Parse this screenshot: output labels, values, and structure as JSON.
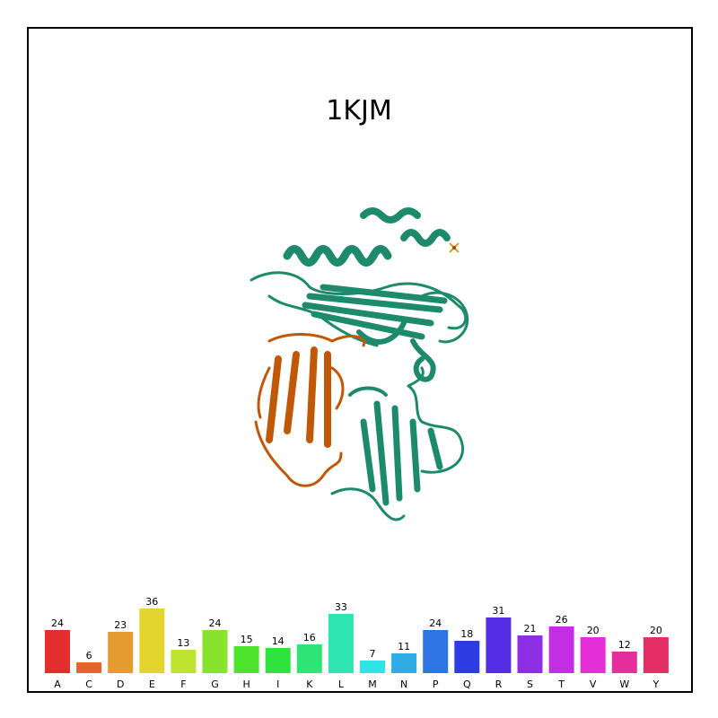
{
  "title": "1KJM",
  "structure": {
    "chain_colors": [
      "#1e8a6c",
      "#c05808"
    ],
    "ligand_colors": [
      "#d4a020",
      "#c03030"
    ]
  },
  "chart_data": {
    "type": "bar",
    "title": "",
    "xlabel": "",
    "ylabel": "",
    "categories": [
      "A",
      "C",
      "D",
      "E",
      "F",
      "G",
      "H",
      "I",
      "K",
      "L",
      "M",
      "N",
      "P",
      "Q",
      "R",
      "S",
      "T",
      "V",
      "W",
      "Y"
    ],
    "values": [
      24,
      6,
      23,
      36,
      13,
      24,
      15,
      14,
      16,
      33,
      7,
      11,
      24,
      18,
      31,
      21,
      26,
      20,
      12,
      20
    ],
    "colors": [
      "#e42e2e",
      "#e4642e",
      "#e49c2e",
      "#e4d42e",
      "#bde42e",
      "#86e42e",
      "#4ee42e",
      "#2ee43c",
      "#2ee474",
      "#2ee4b0",
      "#2ee4e4",
      "#2eace4",
      "#2e74e4",
      "#2e3ce4",
      "#532ee4",
      "#8c2ee4",
      "#c32ee4",
      "#e42ed8",
      "#e42e9c",
      "#e42e64"
    ],
    "grid": false,
    "legend": "none"
  }
}
